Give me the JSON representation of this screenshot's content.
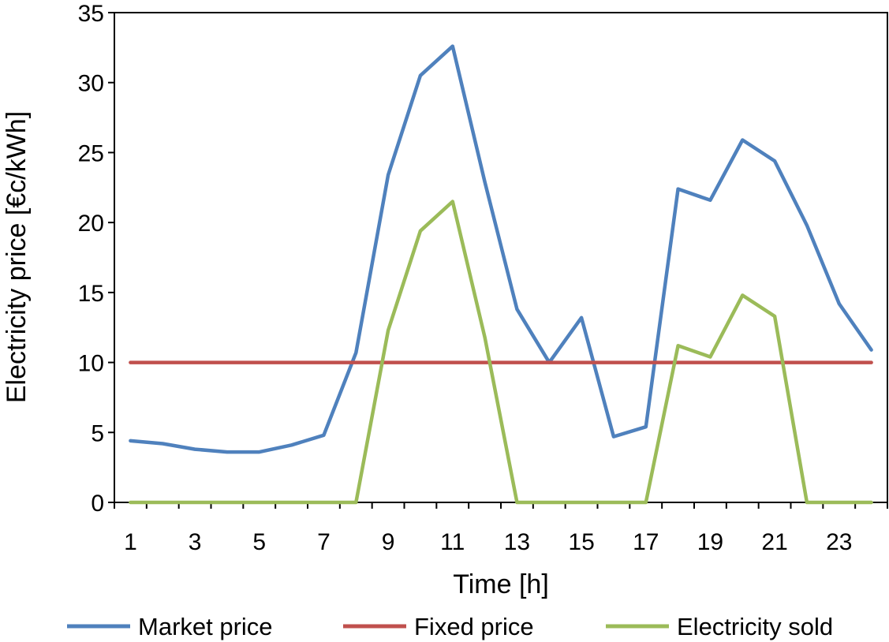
{
  "chart_data": {
    "type": "line",
    "x": [
      1,
      2,
      3,
      4,
      5,
      6,
      7,
      8,
      9,
      10,
      11,
      12,
      13,
      14,
      15,
      16,
      17,
      18,
      19,
      20,
      21,
      22,
      23,
      24
    ],
    "xticks": [
      1,
      3,
      5,
      7,
      9,
      11,
      13,
      15,
      17,
      19,
      21,
      23
    ],
    "xtick_labels": [
      "1",
      "3",
      "5",
      "7",
      "9",
      "11",
      "13",
      "15",
      "17",
      "19",
      "21",
      "23"
    ],
    "yticks": [
      0,
      5,
      10,
      15,
      20,
      25,
      30,
      35
    ],
    "ytick_labels": [
      "0",
      "5",
      "10",
      "15",
      "20",
      "25",
      "30",
      "35"
    ],
    "xlim": [
      0.5,
      24.5
    ],
    "ylim": [
      0,
      35
    ],
    "xlabel": "Time [h]",
    "ylabel": "Electricity price [€c/kWh]",
    "grid": false,
    "legend_position": "bottom",
    "series": [
      {
        "name": "Market price",
        "color": "#4f81bd",
        "values": [
          4.4,
          4.2,
          3.8,
          3.6,
          3.6,
          4.1,
          4.8,
          10.7,
          23.4,
          30.5,
          32.6,
          22.9,
          13.8,
          10.0,
          13.2,
          4.7,
          5.4,
          22.4,
          21.6,
          25.9,
          24.4,
          19.8,
          14.2,
          10.9
        ]
      },
      {
        "name": "Fixed price",
        "color": "#c0504d",
        "values": [
          10,
          10,
          10,
          10,
          10,
          10,
          10,
          10,
          10,
          10,
          10,
          10,
          10,
          10,
          10,
          10,
          10,
          10,
          10,
          10,
          10,
          10,
          10,
          10
        ]
      },
      {
        "name": "Electricity sold",
        "color": "#9bbb59",
        "values": [
          0,
          0,
          0,
          0,
          0,
          0,
          0,
          0,
          12.3,
          19.4,
          21.5,
          11.8,
          0,
          0,
          0,
          0,
          0,
          11.2,
          10.4,
          14.8,
          13.3,
          0,
          0,
          0
        ]
      }
    ]
  }
}
